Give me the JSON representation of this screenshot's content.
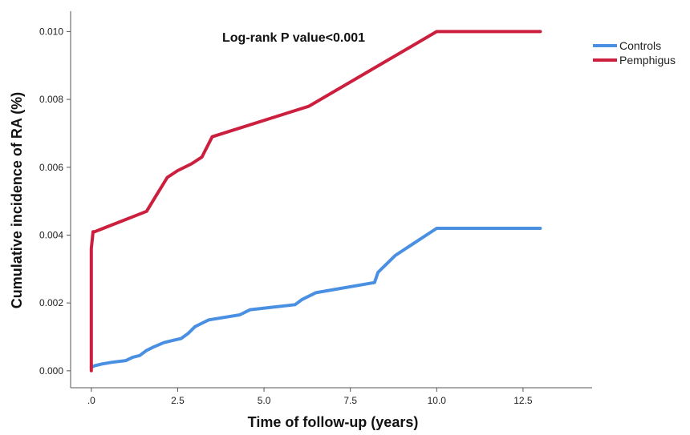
{
  "chart_data": {
    "type": "line",
    "title": "",
    "annotation": "Log-rank P value<0.001",
    "xlabel": "Time of follow-up (years)",
    "ylabel": "Cumulative incidence of RA (%)",
    "xlim": [
      -0.6,
      14.5
    ],
    "ylim": [
      -0.0005,
      0.0106
    ],
    "x_ticks": [
      0,
      2.5,
      5,
      7.5,
      10,
      12.5
    ],
    "x_tick_labels": [
      ".0",
      "2.5",
      "5.0",
      "7.5",
      "10.0",
      "12.5"
    ],
    "y_ticks": [
      0,
      0.002,
      0.004,
      0.006,
      0.008,
      0.01
    ],
    "y_tick_labels": [
      "0.000",
      "0.002",
      "0.004",
      "0.006",
      "0.008",
      "0.010"
    ],
    "grid": false,
    "legend_position": "top-right",
    "series": [
      {
        "name": "Controls",
        "color": "#4a90e2",
        "x": [
          0,
          0.1,
          0.3,
          0.6,
          1.0,
          1.2,
          1.4,
          1.6,
          1.8,
          2.1,
          2.3,
          2.6,
          2.8,
          3.0,
          3.2,
          3.4,
          4.3,
          4.6,
          5.9,
          6.1,
          6.5,
          8.2,
          8.3,
          8.8,
          10.0,
          13.0
        ],
        "y": [
          0.0001,
          0.00015,
          0.0002,
          0.00025,
          0.0003,
          0.0004,
          0.00045,
          0.0006,
          0.0007,
          0.00083,
          0.00088,
          0.00095,
          0.0011,
          0.0013,
          0.0014,
          0.0015,
          0.00165,
          0.0018,
          0.00195,
          0.0021,
          0.0023,
          0.0026,
          0.0029,
          0.0034,
          0.0042,
          0.0042
        ]
      },
      {
        "name": "Pemphigus",
        "color": "#cc1f3d",
        "x": [
          0,
          0.0,
          0.05,
          0.1,
          1.6,
          1.9,
          2.2,
          2.5,
          2.9,
          3.2,
          3.5,
          6.3,
          10.0,
          13.0
        ],
        "y": [
          0.0,
          0.0036,
          0.0041,
          0.0041,
          0.0047,
          0.0052,
          0.0057,
          0.0059,
          0.0061,
          0.0063,
          0.0069,
          0.0078,
          0.01,
          0.01
        ]
      }
    ]
  }
}
